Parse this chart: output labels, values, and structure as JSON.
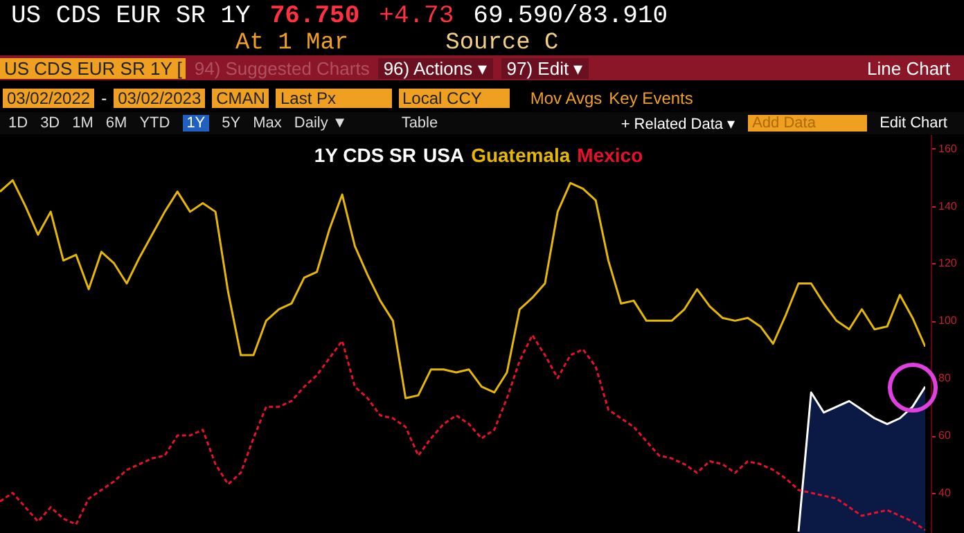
{
  "chart_data": {
    "type": "line",
    "title": "1Y CDS SR",
    "categories": [
      null,
      null,
      null,
      null,
      null,
      null,
      null,
      null,
      null,
      null,
      null,
      null,
      null,
      null,
      null,
      null,
      null,
      null,
      null,
      null,
      null,
      null,
      null,
      null,
      null,
      null,
      null,
      null,
      null,
      null,
      null,
      null,
      null,
      null,
      null,
      null,
      null,
      null,
      null,
      null,
      null,
      null,
      null,
      null,
      null,
      null,
      null,
      null,
      null,
      null,
      null,
      null,
      null,
      null,
      null,
      null,
      null,
      null,
      null,
      null,
      null,
      null,
      null,
      null,
      null,
      null,
      null,
      null,
      null,
      null,
      null,
      null,
      null,
      null
    ],
    "series": [
      {
        "name": "USA",
        "type": "area",
        "color": "#ffffff",
        "values": [
          null,
          null,
          null,
          null,
          null,
          null,
          null,
          null,
          null,
          null,
          null,
          null,
          null,
          null,
          null,
          null,
          null,
          null,
          null,
          null,
          null,
          null,
          null,
          null,
          null,
          null,
          null,
          null,
          null,
          null,
          null,
          null,
          null,
          null,
          null,
          null,
          null,
          null,
          null,
          null,
          null,
          null,
          null,
          null,
          null,
          null,
          null,
          null,
          null,
          null,
          null,
          null,
          null,
          null,
          null,
          null,
          null,
          null,
          null,
          null,
          null,
          null,
          null,
          26.5,
          75,
          68,
          70,
          72,
          69,
          66,
          64,
          66,
          70,
          77
        ]
      },
      {
        "name": "Guatemala",
        "color": "#e6b800",
        "values": [
          145,
          149,
          140,
          130,
          138,
          121,
          123,
          111,
          124,
          120,
          113,
          122,
          130,
          138,
          145,
          138,
          141,
          138,
          110,
          88,
          88,
          100,
          104,
          106,
          115,
          117,
          132,
          144,
          126,
          116,
          107,
          100,
          73,
          74,
          83,
          83,
          82,
          83,
          77,
          75,
          82,
          104,
          108,
          113,
          138,
          148,
          146,
          142,
          121,
          106,
          107,
          100,
          100,
          100,
          104,
          111,
          105,
          101,
          100,
          101,
          98,
          92,
          102,
          113,
          113,
          106,
          100,
          97,
          104,
          97,
          98,
          109,
          101,
          91
        ]
      },
      {
        "name": "Mexico",
        "color": "#e8102a",
        "line_style": "dashed",
        "values": [
          37,
          40,
          35,
          30,
          35,
          31,
          29,
          38,
          41,
          44,
          48,
          50,
          52,
          53,
          60,
          60,
          62,
          50,
          43,
          47,
          59,
          70,
          70,
          72,
          77,
          81,
          87,
          93,
          77,
          73,
          67,
          66,
          63,
          53,
          59,
          64,
          67,
          64,
          59,
          62,
          73,
          86,
          95,
          88,
          80,
          88,
          90,
          84,
          69,
          66,
          63,
          58,
          53,
          52,
          50,
          47,
          51,
          50,
          47,
          51,
          50,
          48,
          45,
          41,
          40,
          39,
          38,
          35,
          32,
          33,
          34,
          32,
          30,
          27
        ]
      }
    ],
    "ylim": [
      26,
      165
    ],
    "yticks": [
      40,
      60,
      80,
      100,
      120,
      140,
      160
    ],
    "tick_labels": "y",
    "annotations": [
      "US CDS EUR SR 1Y",
      "76.750",
      "+4.73",
      "69.590/83.910",
      "At 1 Mar",
      "Source C",
      "US CDS EUR SR 1Y [",
      "94) Suggested Charts",
      "96) Actions ▾",
      "97) Edit ▾",
      "Line Chart",
      "03/02/2022",
      "-",
      "03/02/2023",
      "CMAN",
      "Last Px",
      "Local CCY",
      "Mov Avgs",
      "Key Events",
      "1D",
      "3D",
      "1M",
      "6M",
      "YTD",
      "1Y",
      "5Y",
      "Max",
      "Daily ▼",
      "Table",
      "+ Related Data ▾",
      "Add Data",
      "Edit Chart"
    ]
  }
}
